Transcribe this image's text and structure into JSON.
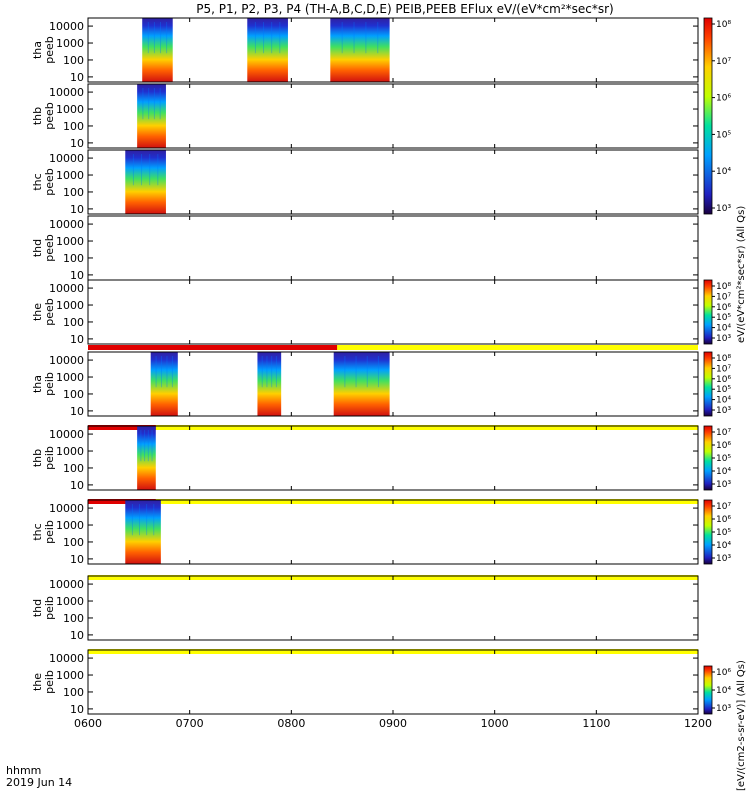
{
  "title": "P5, P1, P2, P3, P4 (TH-A,B,C,D,E) PEIB,PEEB EFlux eV/(eV*cm²*sec*sr)",
  "xlabel_line1": "hhmm",
  "xlabel_line2": "2019 Jun 14",
  "colorbar_labels": {
    "upper": "eV/(eV*cm²*sec*sr) (All Qs)",
    "lower": "[eV/(cm2-s-sr-eV)] (All Qs)"
  },
  "chart_data": {
    "type": "heatmap",
    "x_range": [
      "0600",
      "1200"
    ],
    "x_ticks": [
      "0600",
      "0700",
      "0800",
      "0900",
      "1000",
      "1100",
      "1200"
    ],
    "y_scale": "log",
    "y_ticks": [
      "10",
      "100",
      "1000",
      "10000"
    ],
    "panels": [
      {
        "label_line1": "tha",
        "label_line2": "peeb",
        "ylim": [
          5,
          30000
        ],
        "segments": [
          [
            "0632",
            "0650"
          ],
          [
            "0734",
            "0758"
          ],
          [
            "0823",
            "0858"
          ]
        ],
        "colorbar": "cb1"
      },
      {
        "label_line1": "thb",
        "label_line2": "peeb",
        "ylim": [
          5,
          30000
        ],
        "segments": [
          [
            "0629",
            "0646"
          ]
        ],
        "colorbar": "cb1"
      },
      {
        "label_line1": "thc",
        "label_line2": "peeb",
        "ylim": [
          5,
          30000
        ],
        "segments": [
          [
            "0622",
            "0646"
          ]
        ],
        "colorbar": "cb1"
      },
      {
        "label_line1": "thd",
        "label_line2": "peeb",
        "ylim": [
          5,
          30000
        ],
        "segments": [],
        "colorbar": "cb1"
      },
      {
        "label_line1": "the",
        "label_line2": "peeb",
        "ylim": [
          5,
          30000
        ],
        "segments": [],
        "colorbar": "cb2"
      },
      {
        "label_line1": "tha",
        "label_line2": "peib",
        "ylim": [
          5,
          30000
        ],
        "segments": [
          [
            "0637",
            "0653"
          ],
          [
            "0740",
            "0754"
          ],
          [
            "0825",
            "0858"
          ]
        ],
        "colorbar": "cb3",
        "flag_red_until": "0827"
      },
      {
        "label_line1": "thb",
        "label_line2": "peib",
        "ylim": [
          5,
          30000
        ],
        "segments": [
          [
            "0629",
            "0640"
          ]
        ],
        "colorbar": "cb4",
        "flag_red_until": "0640"
      },
      {
        "label_line1": "thc",
        "label_line2": "peib",
        "ylim": [
          5,
          30000
        ],
        "segments": [
          [
            "0622",
            "0643"
          ]
        ],
        "colorbar": "cb5",
        "flag_red_until": "0640"
      },
      {
        "label_line1": "thd",
        "label_line2": "peib",
        "ylim": [
          5,
          30000
        ],
        "segments": [],
        "colorbar": "none",
        "flag_red_until": null
      },
      {
        "label_line1": "the",
        "label_line2": "peib",
        "ylim": [
          5,
          30000
        ],
        "segments": [],
        "colorbar": "cb6",
        "flag_red_until": null
      }
    ],
    "colorbars": {
      "cb1": {
        "labels": [
          "10⁸",
          "10⁷",
          "10⁶",
          "10⁵",
          "10⁴",
          "10³"
        ]
      },
      "cb2": {
        "labels": [
          "10⁸",
          "10⁷",
          "10⁶",
          "10⁵",
          "10⁴",
          "10³"
        ]
      },
      "cb3": {
        "labels": [
          "10⁸",
          "10⁷",
          "10⁶",
          "10⁵",
          "10⁴",
          "10³"
        ]
      },
      "cb4": {
        "labels": [
          "10⁷",
          "10⁶",
          "10⁵",
          "10⁴",
          "10³"
        ]
      },
      "cb5": {
        "labels": [
          "10⁷",
          "10⁶",
          "10⁵",
          "10⁴",
          "10³"
        ]
      },
      "cb6": {
        "labels": [
          "10⁶",
          "10⁴",
          "10³"
        ]
      }
    }
  }
}
